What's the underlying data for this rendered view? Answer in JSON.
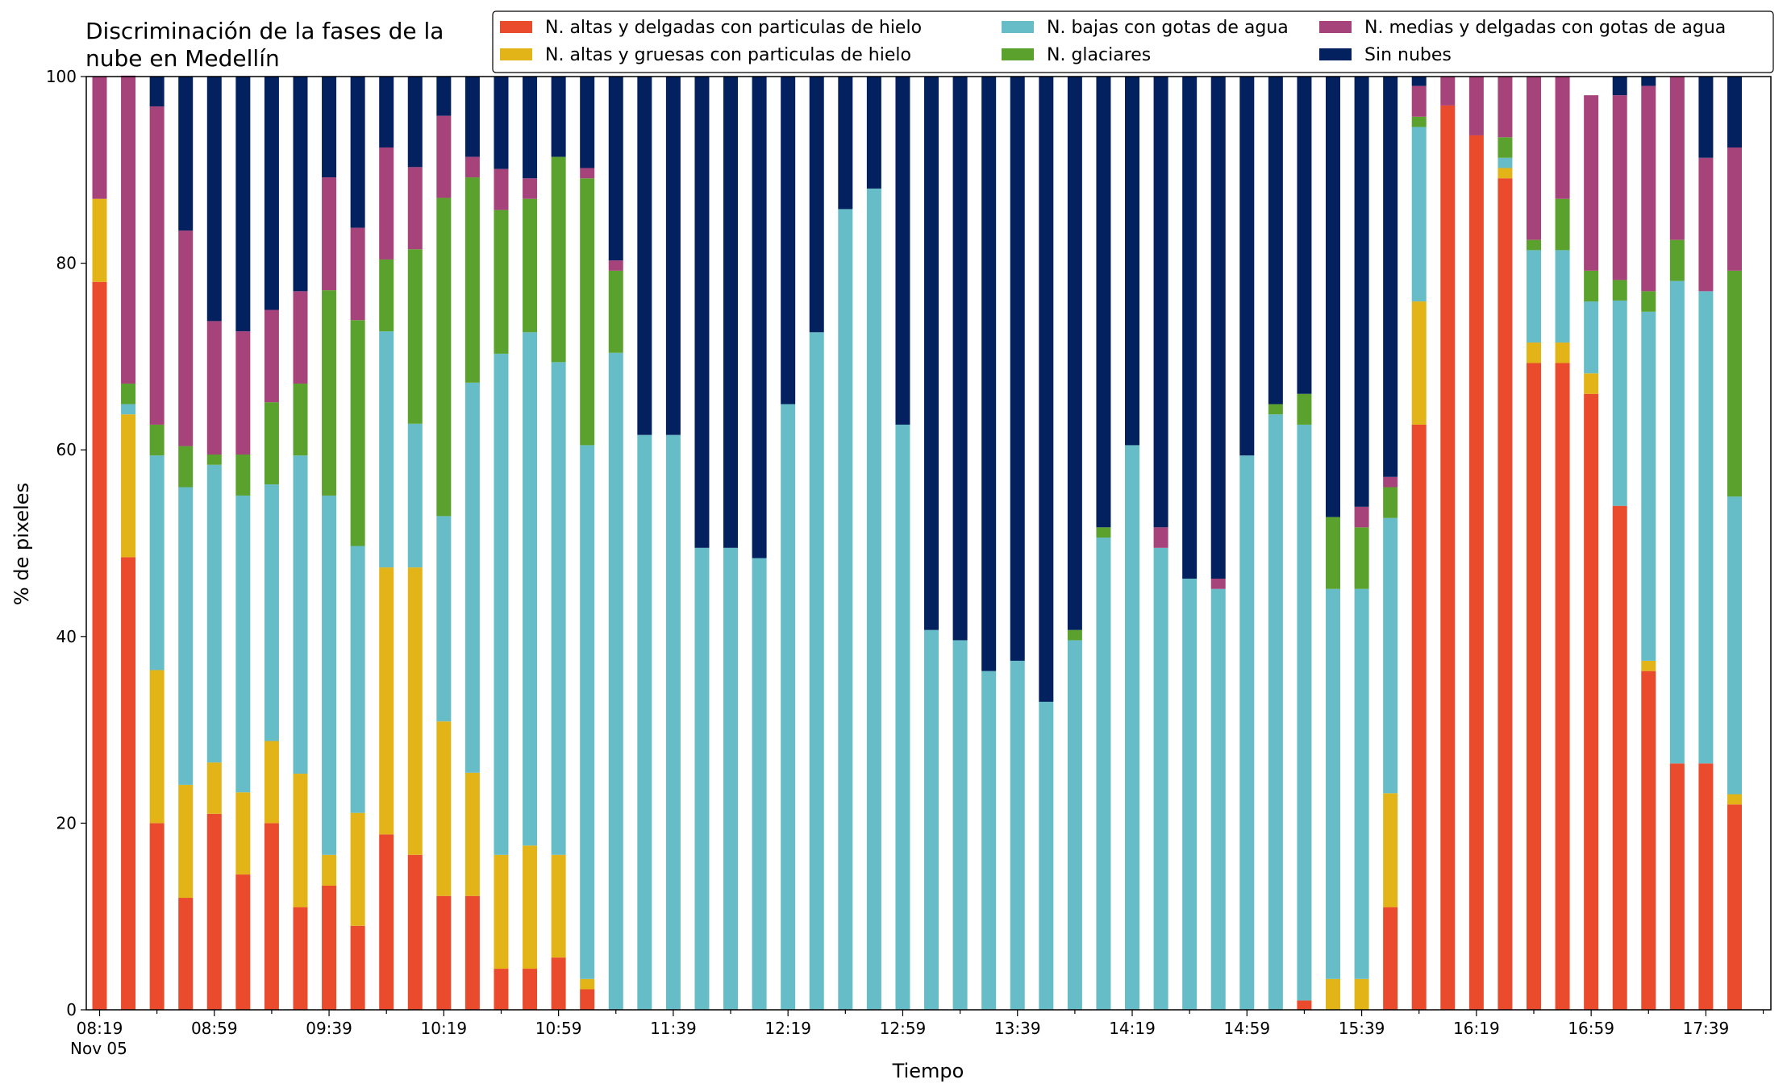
{
  "chart_data": {
    "type": "bar",
    "stacked": true,
    "title_lines": [
      "Discriminación de la fases de la",
      "nube en Medellín"
    ],
    "xlabel": "Tiempo",
    "ylabel": "% de pixeles",
    "ylim": [
      0,
      100
    ],
    "yticks": [
      0,
      20,
      40,
      60,
      80,
      100
    ],
    "date_label": "Nov 05",
    "tick_labels": [
      "08:19",
      "08:59",
      "09:39",
      "10:19",
      "10:59",
      "11:39",
      "12:19",
      "12:59",
      "13:39",
      "14:19",
      "14:59",
      "15:39",
      "16:19",
      "16:59",
      "17:39"
    ],
    "grid": false,
    "legend_position": "top-right",
    "colors": {
      "altas_delgadas": "#ea4b2d",
      "altas_gruesas": "#e3b418",
      "bajas": "#66bdc8",
      "glaciares": "#5ba12d",
      "medias": "#a6437b",
      "sin_nubes": "#03215f"
    },
    "series": [
      {
        "key": "altas_delgadas",
        "name": "N. altas y delgadas con particulas de hielo",
        "values": [
          78,
          48.5,
          20,
          12,
          21,
          14.5,
          20,
          11,
          13.3,
          9,
          18.8,
          16.6,
          12.2,
          12.2,
          4.4,
          4.4,
          5.6,
          2.2,
          0,
          0,
          0,
          0,
          0,
          0,
          0,
          0,
          0,
          0,
          0,
          0,
          0,
          0,
          0,
          0,
          0,
          0,
          0,
          0,
          0,
          0,
          0,
          0,
          1,
          0,
          0,
          11,
          62.7,
          96.9,
          93.7,
          89.1,
          69.3,
          69.3,
          66,
          54,
          36.3,
          26.4,
          26.4,
          22
        ]
      },
      {
        "key": "altas_gruesas",
        "name": "N. altas y gruesas con particulas de hielo",
        "values": [
          8.9,
          15.3,
          16.4,
          12.1,
          5.5,
          8.8,
          8.8,
          14.3,
          3.3,
          12.1,
          28.6,
          30.8,
          18.7,
          13.2,
          12.2,
          13.2,
          11,
          1.1,
          0,
          0,
          0,
          0,
          0,
          0,
          0,
          0,
          0,
          0,
          0,
          0,
          0,
          0,
          0,
          0,
          0,
          0,
          0,
          0,
          0,
          0,
          0,
          0,
          0,
          3.3,
          3.3,
          12.2,
          13.2,
          0,
          0,
          1.1,
          2.2,
          2.2,
          2.2,
          0,
          1.1,
          0,
          0,
          1.1
        ]
      },
      {
        "key": "bajas",
        "name": "N. bajas con gotas de agua",
        "values": [
          0,
          1.1,
          23,
          31.9,
          31.9,
          31.8,
          27.5,
          34.1,
          38.5,
          28.6,
          25.3,
          15.4,
          22,
          41.8,
          53.7,
          55,
          52.8,
          57.2,
          70.4,
          61.6,
          61.6,
          49.5,
          49.5,
          48.4,
          64.9,
          72.6,
          85.8,
          88,
          62.7,
          40.7,
          39.6,
          36.3,
          37.4,
          33,
          39.6,
          50.6,
          60.5,
          49.5,
          46.2,
          45.1,
          59.4,
          63.8,
          61.7,
          41.8,
          41.8,
          29.5,
          18.7,
          0,
          0,
          1.1,
          9.9,
          9.9,
          7.7,
          22,
          37.4,
          51.7,
          50.6,
          31.9
        ]
      },
      {
        "key": "glaciares",
        "name": "N. glaciares",
        "values": [
          0,
          2.2,
          3.3,
          4.4,
          1.1,
          4.4,
          8.8,
          7.7,
          22,
          24.2,
          7.7,
          18.7,
          34.1,
          22,
          15.4,
          14.3,
          22,
          28.6,
          8.8,
          0,
          0,
          0,
          0,
          0,
          0,
          0,
          0,
          0,
          0,
          0,
          0,
          0,
          0,
          0,
          1.1,
          1.1,
          0,
          0,
          0,
          0,
          0,
          1.1,
          3.3,
          7.7,
          6.6,
          3.3,
          1.1,
          0,
          0,
          2.2,
          1.1,
          5.5,
          3.3,
          2.2,
          2.2,
          4.4,
          0,
          24.2
        ]
      },
      {
        "key": "medias",
        "name": "N. medias y delgadas con gotas de agua",
        "values": [
          13.1,
          33,
          34.1,
          23.1,
          14.3,
          13.2,
          9.9,
          9.9,
          12.1,
          9.9,
          12,
          8.8,
          8.8,
          2.2,
          4.4,
          2.2,
          0,
          1.1,
          1.1,
          0,
          0,
          0,
          0,
          0,
          0,
          0,
          0,
          0,
          0,
          0,
          0,
          0,
          0,
          0,
          0,
          0,
          0,
          2.2,
          0,
          1.1,
          0,
          0,
          0,
          0,
          2.2,
          1.1,
          3.3,
          3.1,
          6.3,
          6.5,
          17.5,
          13.1,
          18.8,
          19.8,
          22,
          17.5,
          14.3,
          13.2
        ]
      },
      {
        "key": "sin_nubes",
        "name": "Sin nubes",
        "values": [
          0,
          0,
          3.2,
          16.5,
          26.2,
          27.3,
          25,
          23,
          10.8,
          16.2,
          7.6,
          9.7,
          4.2,
          8.6,
          9.9,
          10.9,
          8.6,
          9.8,
          19.7,
          38.4,
          38.4,
          50.5,
          50.5,
          51.6,
          35.1,
          27.4,
          14.2,
          12,
          37.3,
          59.3,
          60.4,
          63.7,
          62.6,
          67,
          59.3,
          48.3,
          39.5,
          48.3,
          53.8,
          53.8,
          40.6,
          35.1,
          34,
          47.2,
          46.1,
          42.9,
          1,
          0,
          0,
          0,
          0,
          0,
          0,
          2,
          1,
          0,
          8.7,
          7.6
        ]
      }
    ]
  }
}
